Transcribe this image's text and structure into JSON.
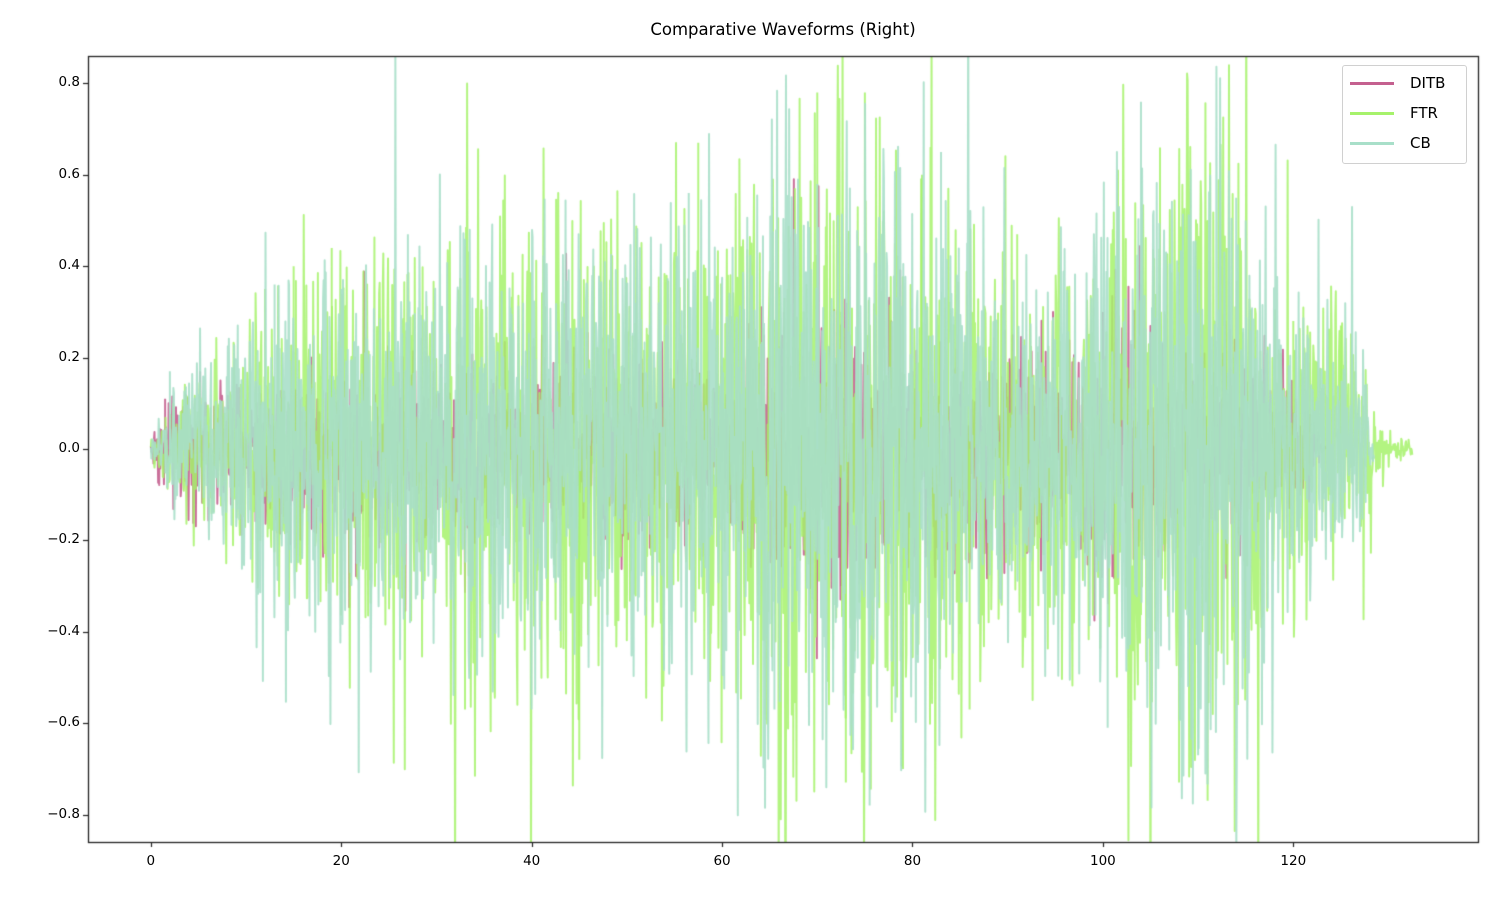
{
  "chart_data": {
    "type": "line",
    "title": "Comparative Waveforms (Right)",
    "xlabel": "",
    "ylabel": "",
    "xlim": [
      -6.6,
      139.4
    ],
    "ylim": [
      -0.86,
      0.86
    ],
    "x_ticks": [
      0,
      20,
      40,
      60,
      80,
      100,
      120
    ],
    "x_tick_labels": [
      "0",
      "20",
      "40",
      "60",
      "80",
      "100",
      "120"
    ],
    "y_ticks": [
      0.8,
      0.6,
      0.4,
      0.2,
      0.0,
      -0.2,
      -0.4,
      -0.6,
      -0.8
    ],
    "y_tick_labels": [
      "0.8",
      "0.6",
      "0.4",
      "0.2",
      "0.0",
      "−0.2",
      "−0.4",
      "−0.6",
      "−0.8"
    ],
    "grid": false,
    "legend_position": "upper right",
    "series": [
      {
        "name": "DITB",
        "color": "#c4608f",
        "alpha": 0.9,
        "x_range": [
          0,
          123.5
        ],
        "envelope": [
          [
            0,
            0.02
          ],
          [
            1,
            0.06
          ],
          [
            3,
            0.07
          ],
          [
            6,
            0.08
          ],
          [
            10,
            0.1
          ],
          [
            20,
            0.12
          ],
          [
            30,
            0.12
          ],
          [
            40,
            0.13
          ],
          [
            50,
            0.12
          ],
          [
            60,
            0.13
          ],
          [
            66,
            0.16
          ],
          [
            70,
            0.18
          ],
          [
            75,
            0.15
          ],
          [
            80,
            0.14
          ],
          [
            85,
            0.14
          ],
          [
            90,
            0.13
          ],
          [
            98,
            0.16
          ],
          [
            103,
            0.18
          ],
          [
            108,
            0.14
          ],
          [
            112,
            0.14
          ],
          [
            118,
            0.1
          ],
          [
            122,
            0.05
          ],
          [
            123.5,
            0.0
          ]
        ],
        "peaks": [
          [
            1.5,
            0.11
          ],
          [
            66.5,
            0.3
          ],
          [
            72.5,
            -0.3
          ],
          [
            80,
            0.17
          ],
          [
            82,
            0.17
          ],
          [
            86,
            -0.18
          ],
          [
            96,
            -0.12
          ],
          [
            100,
            0.3
          ],
          [
            101,
            -0.28
          ],
          [
            103,
            0.23
          ],
          [
            103.5,
            -0.2
          ],
          [
            120,
            0.08
          ]
        ]
      },
      {
        "name": "FTR",
        "color": "#a6f26b",
        "alpha": 0.85,
        "x_range": [
          0,
          132.5
        ],
        "envelope": [
          [
            0,
            0.02
          ],
          [
            2,
            0.06
          ],
          [
            5,
            0.1
          ],
          [
            10,
            0.17
          ],
          [
            15,
            0.25
          ],
          [
            20,
            0.26
          ],
          [
            25,
            0.24
          ],
          [
            30,
            0.26
          ],
          [
            33,
            0.35
          ],
          [
            40,
            0.28
          ],
          [
            45,
            0.32
          ],
          [
            50,
            0.28
          ],
          [
            55,
            0.32
          ],
          [
            60,
            0.3
          ],
          [
            65,
            0.4
          ],
          [
            70,
            0.46
          ],
          [
            75,
            0.44
          ],
          [
            80,
            0.38
          ],
          [
            85,
            0.32
          ],
          [
            90,
            0.26
          ],
          [
            95,
            0.27
          ],
          [
            100,
            0.33
          ],
          [
            105,
            0.42
          ],
          [
            110,
            0.46
          ],
          [
            113,
            0.4
          ],
          [
            118,
            0.22
          ],
          [
            122,
            0.18
          ],
          [
            126,
            0.16
          ],
          [
            128,
            0.12
          ],
          [
            129,
            0.05
          ],
          [
            130,
            0.02
          ],
          [
            132.5,
            0.01
          ]
        ],
        "peaks": [
          [
            12,
            0.35
          ],
          [
            15,
            0.4
          ],
          [
            19,
            0.44
          ],
          [
            33,
            -0.57
          ],
          [
            45,
            -0.68
          ],
          [
            57.5,
            0.67
          ],
          [
            70,
            0.78
          ],
          [
            73,
            -0.73
          ],
          [
            75,
            0.78
          ],
          [
            79,
            -0.7
          ],
          [
            81,
            0.6
          ],
          [
            86,
            -0.57
          ],
          [
            91,
            0.47
          ],
          [
            106,
            0.66
          ],
          [
            108,
            -0.73
          ],
          [
            111,
            -0.77
          ],
          [
            113,
            0.44
          ],
          [
            120,
            0.28
          ],
          [
            125,
            0.27
          ]
        ]
      },
      {
        "name": "CB",
        "color": "#a8dfc9",
        "alpha": 0.9,
        "x_range": [
          0,
          128.5
        ],
        "envelope": [
          [
            0,
            0.02
          ],
          [
            2,
            0.07
          ],
          [
            5,
            0.1
          ],
          [
            10,
            0.18
          ],
          [
            15,
            0.22
          ],
          [
            20,
            0.24
          ],
          [
            25,
            0.22
          ],
          [
            30,
            0.24
          ],
          [
            33,
            0.3
          ],
          [
            40,
            0.28
          ],
          [
            45,
            0.3
          ],
          [
            50,
            0.28
          ],
          [
            55,
            0.3
          ],
          [
            60,
            0.3
          ],
          [
            65,
            0.42
          ],
          [
            70,
            0.46
          ],
          [
            75,
            0.42
          ],
          [
            80,
            0.36
          ],
          [
            85,
            0.32
          ],
          [
            90,
            0.25
          ],
          [
            95,
            0.26
          ],
          [
            100,
            0.32
          ],
          [
            105,
            0.42
          ],
          [
            110,
            0.46
          ],
          [
            113,
            0.42
          ],
          [
            118,
            0.22
          ],
          [
            122,
            0.18
          ],
          [
            125,
            0.16
          ],
          [
            127.5,
            0.12
          ],
          [
            128.5,
            0.02
          ]
        ],
        "peaks": [
          [
            2,
            0.17
          ],
          [
            13,
            0.36
          ],
          [
            20,
            0.35
          ],
          [
            27,
            0.47
          ],
          [
            33,
            0.46
          ],
          [
            44.5,
            -0.45
          ],
          [
            56.5,
            0.56
          ],
          [
            65.5,
            -0.57
          ],
          [
            70,
            0.58
          ],
          [
            75.5,
            -0.78
          ],
          [
            83,
            0.65
          ],
          [
            100.5,
            -0.61
          ],
          [
            104,
            0.76
          ],
          [
            110,
            -0.67
          ],
          [
            114,
            0.55
          ],
          [
            115,
            0.5
          ]
        ]
      }
    ]
  },
  "legend": {
    "items": [
      {
        "label": "DITB",
        "color": "#c4608f"
      },
      {
        "label": "FTR",
        "color": "#a6f26b"
      },
      {
        "label": "CB",
        "color": "#a8dfc9"
      }
    ]
  }
}
